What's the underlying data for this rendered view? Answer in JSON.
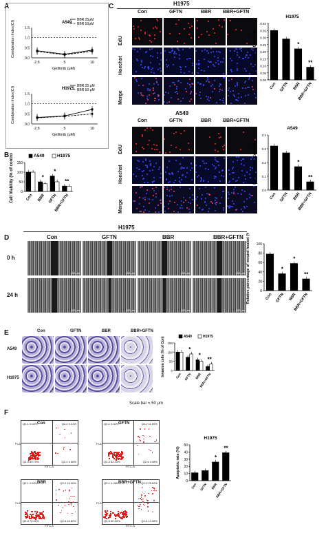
{
  "panel_labels": {
    "a": "A",
    "b": "B",
    "c": "C",
    "d": "D",
    "e": "E",
    "f": "F"
  },
  "panel_a": {
    "top": {
      "cell": "A549",
      "legend": [
        "BBR 25μM",
        "BBR 50μM"
      ],
      "ylabel": "Combination Index(CI)",
      "xlabel": "Gefitinib (μM)",
      "xticks": [
        "2.5",
        "5",
        "10"
      ],
      "yticks": [
        "0.0",
        "0.5",
        "1.0",
        "1.5"
      ]
    },
    "bottom": {
      "cell": "H1975",
      "legend": [
        "BBR 25 μM",
        "BBR 50 μM"
      ],
      "ylabel": "Combination Index(CI)",
      "xlabel": "Gefitinib (μM)",
      "xticks": [
        "2.5",
        "5",
        "10"
      ],
      "yticks": [
        "0.0",
        "0.5",
        "1.0",
        "1.5"
      ]
    }
  },
  "panel_b": {
    "ylabel": "Cell Viability (% of control)",
    "legend": [
      "A549",
      "H1975"
    ],
    "categories": [
      "Con",
      "BBR",
      "GFTN",
      "BBR+GFTN"
    ],
    "yticks": [
      "0",
      "50",
      "100",
      "150"
    ]
  },
  "panel_c": {
    "h1975": {
      "title": "H1975",
      "cols": [
        "Con",
        "GFTN",
        "BBR",
        "BBR+GFTN"
      ],
      "rows": [
        "EdU",
        "Hoechst",
        "Merge"
      ],
      "chart_title": "H1975",
      "ylabel": "EdU-positive Cells (%)",
      "yticks": [
        "0.00",
        "0.05",
        "0.10",
        "0.15",
        "0.20",
        "0.25",
        "0.30",
        "0.35",
        "0.40"
      ]
    },
    "a549": {
      "title": "A549",
      "cols": [
        "Con",
        "GFTN",
        "BBR",
        "BBR+GFTN"
      ],
      "rows": [
        "EdU",
        "Hoechst",
        "Merge"
      ],
      "chart_title": "A549",
      "ylabel": "EdU-positive Cells (%)",
      "yticks": [
        "0.0",
        "0.1",
        "0.2",
        "0.3",
        "0.4"
      ]
    }
  },
  "panel_d": {
    "title": "H1975",
    "cols": [
      "Con",
      "GFTN",
      "BBR",
      "BBR+GFTN"
    ],
    "rows": [
      "0 h",
      "24 h"
    ],
    "scale": "100 μm",
    "ylabel": "Relative percentage of wound healed (%)",
    "yticks": [
      "0",
      "20",
      "40",
      "60",
      "80",
      "100"
    ]
  },
  "panel_e": {
    "cols": [
      "Con",
      "GFTN",
      "BBR",
      "BBR+GFTN"
    ],
    "rows": [
      "A549",
      "H1975"
    ],
    "scale_bar": "Scale bar = 50 μm",
    "ylabel": "Invasion cells (% of Con)",
    "legend": [
      "A549",
      "H1975"
    ],
    "yticks": [
      "0",
      "50",
      "100",
      "150"
    ]
  },
  "panel_f": {
    "plots": [
      {
        "title": "Con",
        "q1": "Q2-1",
        "q1v": "0.02%",
        "q2": "Q2-2",
        "q2v": "0.31%",
        "q3": "Q2-3",
        "q3v": "89.73%",
        "q4": "Q2-4",
        "q4v": "4.68%"
      },
      {
        "title": "GFTN",
        "q1": "Q2-1",
        "q1v": "0.32%",
        "q2": "Q2-2",
        "q2v": "11.05%",
        "q3": "Q2-3",
        "q3v": "83.13%",
        "q4": "Q2-4",
        "q4v": "4.58%"
      },
      {
        "title": "BBR",
        "q1": "Q2-1",
        "q1v": "0.60%",
        "q2": "Q2-2",
        "q2v": "15.56%",
        "q3": "Q2-3",
        "q3v": "72.00%",
        "q4": "Q2-4",
        "q4v": "10.82%"
      },
      {
        "title": "BBR+GFTN",
        "q1": "Q2-1",
        "q1v": "0.28%",
        "q2": "Q2-2",
        "q2v": "25.82%",
        "q3": "Q2-3",
        "q3v": "60.53%",
        "q4": "Q2-4",
        "q4v": "12.98%"
      }
    ],
    "xaxis": "FITC-A",
    "yaxis": "PI-A",
    "chart_title": "H1975",
    "ylabel": "Apoptotic rate (%)",
    "yticks": [
      "0",
      "10",
      "20",
      "30",
      "40",
      "50"
    ]
  },
  "chart_data": [
    {
      "id": "a_top",
      "type": "line",
      "title": "A549",
      "xlabel": "Gefitinib (μM)",
      "ylabel": "Combination Index(CI)",
      "categories": [
        "2.5",
        "5",
        "10"
      ],
      "ylim": [
        0,
        1.5
      ],
      "series": [
        {
          "name": "BBR 25μM",
          "values": [
            0.35,
            0.18,
            0.38
          ]
        },
        {
          "name": "BBR 50μM",
          "values": [
            0.32,
            0.15,
            0.33
          ]
        }
      ]
    },
    {
      "id": "a_bottom",
      "type": "line",
      "title": "H1975",
      "xlabel": "Gefitinib (μM)",
      "ylabel": "Combination Index(CI)",
      "categories": [
        "2.5",
        "5",
        "10"
      ],
      "ylim": [
        0,
        1.5
      ],
      "series": [
        {
          "name": "BBR 25 μM",
          "values": [
            0.32,
            0.4,
            0.72
          ]
        },
        {
          "name": "BBR 50 μM",
          "values": [
            0.3,
            0.38,
            0.5
          ]
        }
      ]
    },
    {
      "id": "b",
      "type": "bar",
      "ylabel": "Cell Viability (% of control)",
      "categories": [
        "Con",
        "BBR",
        "GFTN",
        "BBR+GFTN"
      ],
      "ylim": [
        0,
        150
      ],
      "series": [
        {
          "name": "A549",
          "values": [
            100,
            50,
            80,
            28
          ]
        },
        {
          "name": "H1975",
          "values": [
            100,
            40,
            50,
            27
          ]
        }
      ],
      "annotations": [
        "",
        "*",
        "*",
        "**"
      ]
    },
    {
      "id": "c_h1975",
      "type": "bar",
      "title": "H1975",
      "ylabel": "EdU-positive Cells (%)",
      "categories": [
        "Con",
        "GFTN",
        "BBR",
        "BBR+GFTN"
      ],
      "ylim": [
        0,
        0.4
      ],
      "values": [
        0.35,
        0.29,
        0.22,
        0.09
      ],
      "annotations": [
        "",
        "",
        "*",
        "**"
      ]
    },
    {
      "id": "c_a549",
      "type": "bar",
      "title": "A549",
      "ylabel": "EdU-positive Cells (%)",
      "categories": [
        "Con",
        "GFTN",
        "BBR",
        "BBR+GFTN"
      ],
      "ylim": [
        0,
        0.4
      ],
      "values": [
        0.32,
        0.27,
        0.17,
        0.06
      ],
      "annotations": [
        "",
        "",
        "*",
        "**"
      ]
    },
    {
      "id": "d",
      "type": "bar",
      "ylabel": "Relative percentage of wound healed (%)",
      "categories": [
        "Con",
        "GFTN",
        "BBR",
        "BBR+GFTN"
      ],
      "ylim": [
        0,
        100
      ],
      "values": [
        78,
        36,
        58,
        25
      ],
      "annotations": [
        "",
        "*",
        "*",
        "**"
      ]
    },
    {
      "id": "e",
      "type": "bar",
      "ylabel": "Invasion cells (% of Con)",
      "categories": [
        "Con",
        "GFTN",
        "BBR",
        "BBR+GFTN"
      ],
      "ylim": [
        0,
        150
      ],
      "series": [
        {
          "name": "A549",
          "values": [
            100,
            72,
            58,
            22
          ]
        },
        {
          "name": "H1975",
          "values": [
            100,
            90,
            50,
            35
          ]
        }
      ],
      "annotations": [
        "",
        "*",
        "*",
        "**"
      ]
    },
    {
      "id": "f",
      "type": "bar",
      "title": "H1975",
      "ylabel": "Apoptotic rate (%)",
      "categories": [
        "Con",
        "GFTN",
        "BBR",
        "BBR+GFTN"
      ],
      "ylim": [
        0,
        50
      ],
      "values": [
        11,
        14,
        26,
        39
      ],
      "annotations": [
        "",
        "",
        "*",
        "**"
      ]
    }
  ]
}
